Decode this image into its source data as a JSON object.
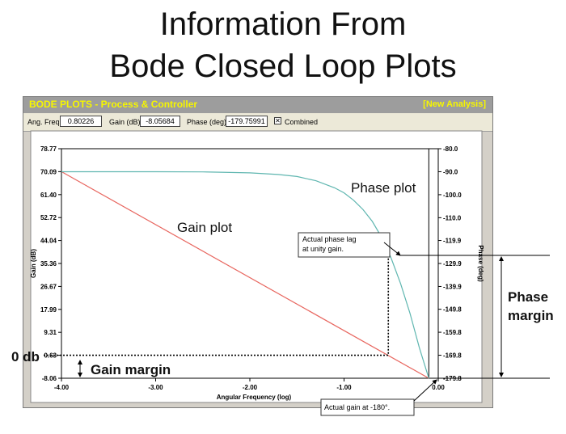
{
  "slide": {
    "title_line1": "Information From",
    "title_line2": "Bode Closed Loop Plots"
  },
  "window": {
    "title": "BODE PLOTS - Process & Controller",
    "action": "[New Analysis]"
  },
  "toolbar": {
    "ang_freq_label": "Ang. Freq.",
    "ang_freq_value": "0.80226",
    "gain_label": "Gain (dB)",
    "gain_value": "-8.05684",
    "phase_label": "Phase (deg)",
    "phase_value": "-179.75991",
    "combined_label": "Combined",
    "combined_checked": true
  },
  "chart_data": {
    "type": "line",
    "xlabel": "Angular Frequency (log)",
    "ylabel_left": "Gain (dB)",
    "ylabel_right": "Phase (deg)",
    "x_ticks": [
      "-4.00",
      "-3.00",
      "-2.00",
      "-1.00",
      "0.00"
    ],
    "x_tick_values": [
      -4,
      -3,
      -2,
      -1,
      0
    ],
    "xlim": [
      -4.0,
      0.0
    ],
    "left_ticks": [
      "-8.06",
      "0.63",
      "9.31",
      "17.99",
      "26.67",
      "35.36",
      "44.04",
      "52.72",
      "61.40",
      "70.09",
      "78.77"
    ],
    "left_tick_values": [
      -8.06,
      0.63,
      9.31,
      17.99,
      26.67,
      35.36,
      44.04,
      52.72,
      61.4,
      70.09,
      78.77
    ],
    "left_ylim": [
      -8.06,
      78.77
    ],
    "right_ticks": [
      "-179.8",
      "-169.8",
      "-159.8",
      "-149.8",
      "-139.9",
      "-129.9",
      "-119.9",
      "-110.0",
      "-100.0",
      "-90.0",
      "-80.0"
    ],
    "right_tick_values": [
      -179.8,
      -169.8,
      -159.8,
      -149.8,
      -139.9,
      -129.9,
      -119.9,
      -110.0,
      -100.0,
      -90.0,
      -80.0
    ],
    "right_ylim": [
      -179.8,
      -80.0
    ],
    "series": [
      {
        "axis": "left",
        "color": "#e8665f",
        "x": [
          -4.0,
          -0.1
        ],
        "y": [
          70.09,
          -8.06
        ]
      },
      {
        "axis": "right",
        "color": "#5fb6b0",
        "x": [
          -4.0,
          -3.0,
          -2.5,
          -2.0,
          -1.7,
          -1.5,
          -1.3,
          -1.1,
          -1.0,
          -0.9,
          -0.8,
          -0.7,
          -0.6,
          -0.5,
          -0.4,
          -0.3,
          -0.2,
          -0.1
        ],
        "y": [
          -90.0,
          -90.0,
          -90.1,
          -90.5,
          -91.2,
          -92.1,
          -93.9,
          -97.0,
          -99.2,
          -102.4,
          -106.4,
          -111.6,
          -118.6,
          -127.6,
          -138.6,
          -151.6,
          -166.6,
          -179.8
        ]
      }
    ],
    "marker_x_unity_gain": -0.53,
    "marker_x_crossover": -0.1
  },
  "annotations": {
    "phase_plot_label": "Phase plot",
    "gain_plot_label": "Gain plot",
    "phase_lag_line1": "Actual phase lag",
    "phase_lag_line2": "at unity gain.",
    "actual_gain_label": "Actual gain at -180°.",
    "zero_db_label": "0 db",
    "gain_margin_label": "Gain margin",
    "phase_margin_line1": "Phase",
    "phase_margin_line2": "margin"
  }
}
